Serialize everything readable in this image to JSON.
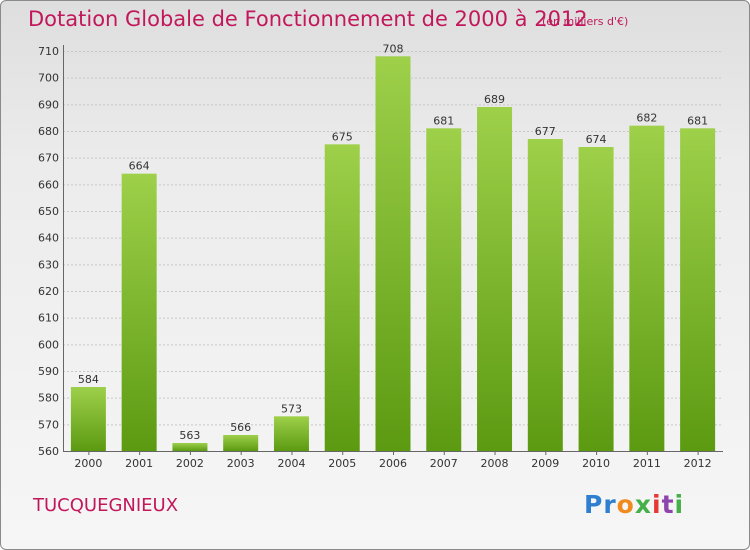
{
  "title": "Dotation Globale de Fonctionnement de 2000 à 2012",
  "subtitle": "(en milliers d'€)",
  "commune": "TUCQUEGNIEUX",
  "brand": {
    "text": "Proxiti",
    "colors": [
      "#2e7fd0",
      "#f08a1c",
      "#45b04a",
      "#e53935",
      "#8e44ad"
    ]
  },
  "colors": {
    "title": "#c2185b",
    "bar_top": "#9ed04a",
    "bar_bottom": "#5c9a12",
    "grid": "#c8c8c8"
  },
  "chart_data": {
    "type": "bar",
    "title": "Dotation Globale de Fonctionnement de 2000 à 2012",
    "subtitle": "(en milliers d'€)",
    "xlabel": "",
    "ylabel": "",
    "categories": [
      "2000",
      "2001",
      "2002",
      "2003",
      "2004",
      "2005",
      "2006",
      "2007",
      "2008",
      "2009",
      "2010",
      "2011",
      "2012"
    ],
    "values": [
      584,
      664,
      563,
      566,
      573,
      675,
      708,
      681,
      689,
      677,
      674,
      682,
      681
    ],
    "ylim": [
      560,
      710
    ],
    "yticks": [
      560,
      570,
      580,
      590,
      600,
      610,
      620,
      630,
      640,
      650,
      660,
      670,
      680,
      690,
      700,
      710
    ],
    "grid": true,
    "legend": "none"
  }
}
